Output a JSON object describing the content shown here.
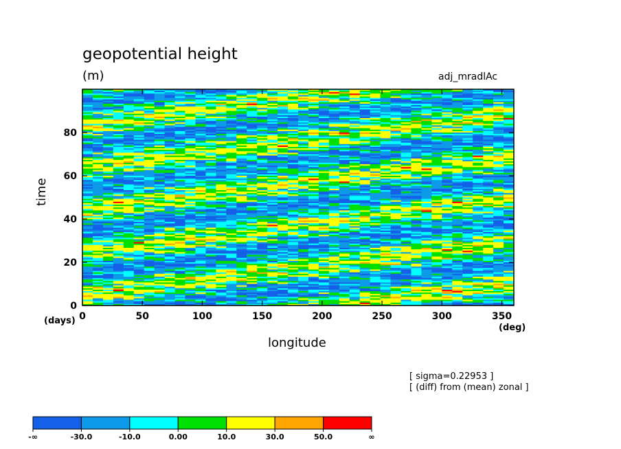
{
  "chart_data": {
    "type": "heatmap",
    "title": "geopotential height",
    "unit": "(m)",
    "case_id": "adj_mradlAc",
    "xlabel": "longitude",
    "ylabel": "time",
    "x_unit": "(deg)",
    "y_unit": "(days)",
    "xlim": [
      0,
      360
    ],
    "ylim": [
      0,
      100
    ],
    "x_ticks": [
      "0",
      "50",
      "100",
      "150",
      "200",
      "250",
      "300",
      "350"
    ],
    "x_tick_values": [
      0,
      50,
      100,
      150,
      200,
      250,
      300,
      350
    ],
    "y_ticks": [
      "0",
      "20",
      "40",
      "60",
      "80"
    ],
    "y_tick_values": [
      0,
      20,
      40,
      60,
      80
    ],
    "notes": [
      "[ sigma=0.22953 ]",
      "[ (diff) from (mean) zonal ]"
    ],
    "colorbar": {
      "labels": [
        "-∞",
        "-30.0",
        "-10.0",
        "0.00",
        "10.0",
        "30.0",
        "50.0",
        "∞"
      ],
      "colors": [
        "#1560e8",
        "#0d9ae8",
        "#00ffff",
        "#00e000",
        "#ffff00",
        "#ffa500",
        "#ff0000"
      ]
    }
  }
}
